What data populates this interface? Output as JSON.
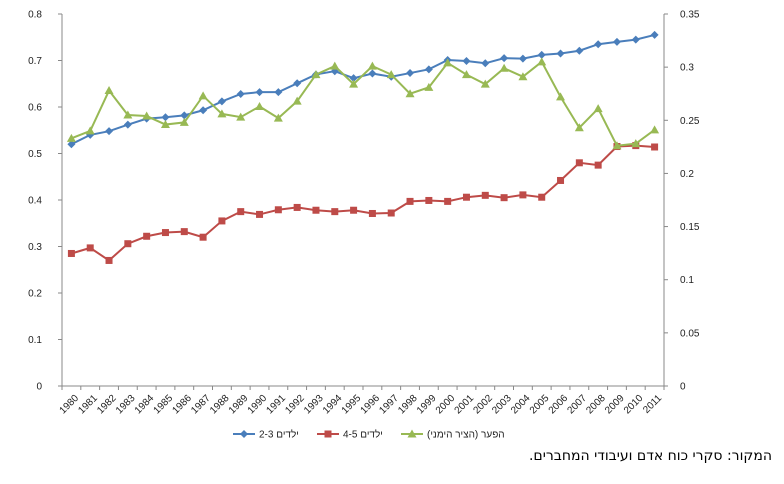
{
  "chart_data": {
    "type": "line",
    "x": [
      1980,
      1981,
      1982,
      1983,
      1984,
      1985,
      1986,
      1987,
      1988,
      1989,
      1990,
      1991,
      1992,
      1993,
      1994,
      1995,
      1996,
      1997,
      1998,
      1999,
      2000,
      2001,
      2002,
      2003,
      2004,
      2005,
      2006,
      2007,
      2008,
      2009,
      2010,
      2011
    ],
    "x_tick_labels": [
      "1980",
      "1981",
      "1982",
      "1983",
      "1984",
      "1985",
      "1986",
      "1987",
      "1988",
      "1989",
      "1990",
      "1991",
      "1992",
      "1993",
      "1994",
      "1995",
      "1996",
      "1997",
      "1998",
      "1999",
      "2000",
      "2001",
      "2002",
      "2003",
      "2004",
      "2005",
      "2006",
      "2007",
      "2008",
      "2009",
      "2010",
      "2011"
    ],
    "left_axis": {
      "min": 0,
      "max": 0.8,
      "ticks": [
        "0",
        "0.1",
        "0.2",
        "0.3",
        "0.4",
        "0.5",
        "0.6",
        "0.7",
        "0.8"
      ]
    },
    "right_axis": {
      "min": 0,
      "max": 0.35,
      "ticks": [
        "0",
        "0.05",
        "0.1",
        "0.15",
        "0.2",
        "0.25",
        "0.3",
        "0.35"
      ]
    },
    "grid": false,
    "legend_position": "bottom",
    "series": [
      {
        "name": "2-3 ילדים",
        "axis": "left",
        "color": "#4a7ebb",
        "marker": "diamond",
        "values": [
          0.52,
          0.54,
          0.548,
          0.562,
          0.575,
          0.578,
          0.582,
          0.593,
          0.612,
          0.628,
          0.632,
          0.632,
          0.651,
          0.67,
          0.677,
          0.662,
          0.672,
          0.665,
          0.673,
          0.681,
          0.701,
          0.699,
          0.694,
          0.705,
          0.704,
          0.712,
          0.715,
          0.721,
          0.735,
          0.74,
          0.745,
          0.755
        ]
      },
      {
        "name": "4-5 ילדים",
        "axis": "left",
        "color": "#be4b48",
        "marker": "square",
        "values": [
          0.285,
          0.297,
          0.27,
          0.306,
          0.322,
          0.33,
          0.332,
          0.32,
          0.355,
          0.375,
          0.369,
          0.379,
          0.384,
          0.378,
          0.375,
          0.378,
          0.371,
          0.372,
          0.397,
          0.399,
          0.397,
          0.406,
          0.41,
          0.405,
          0.411,
          0.406,
          0.442,
          0.48,
          0.475,
          0.515,
          0.517,
          0.514
        ]
      },
      {
        "name": "הפער (הציר הימני)",
        "axis": "right",
        "color": "#98b954",
        "marker": "triangle",
        "values": [
          0.233,
          0.24,
          0.278,
          0.255,
          0.254,
          0.246,
          0.248,
          0.273,
          0.256,
          0.253,
          0.263,
          0.252,
          0.268,
          0.293,
          0.301,
          0.284,
          0.301,
          0.293,
          0.275,
          0.281,
          0.304,
          0.293,
          0.284,
          0.299,
          0.291,
          0.305,
          0.272,
          0.243,
          0.261,
          0.226,
          0.228,
          0.241
        ]
      }
    ]
  },
  "source": "המקור: סקרי כוח אדם ועיבודי המחברים."
}
